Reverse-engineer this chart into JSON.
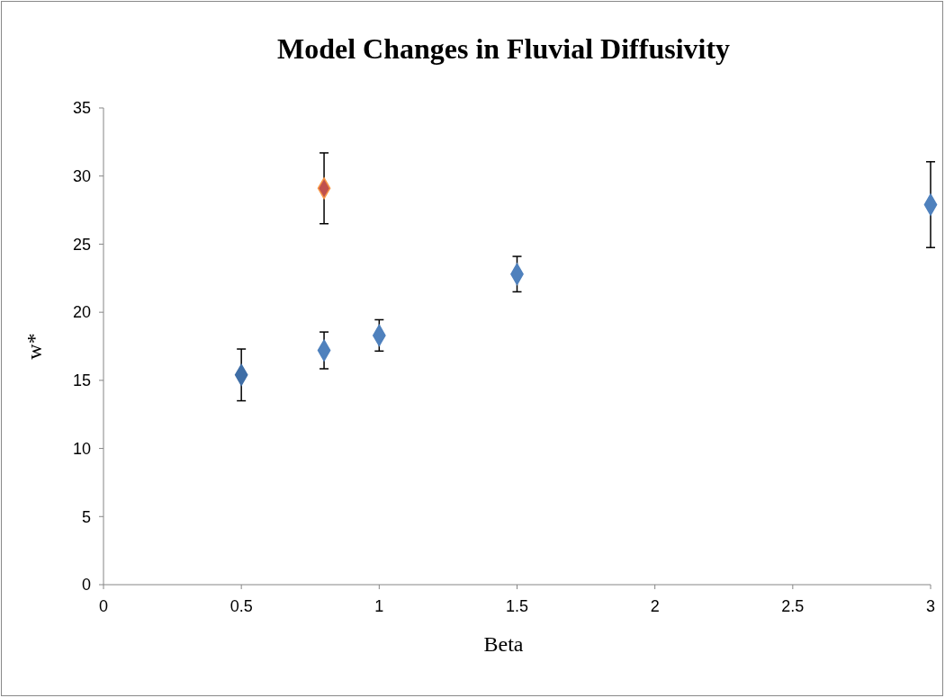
{
  "chart_data": {
    "type": "scatter",
    "title": "Model Changes in Fluvial Diffusivity",
    "xlabel": "Beta",
    "ylabel": "w*",
    "xlim": [
      0,
      3
    ],
    "xticks": [
      0,
      0.5,
      1,
      1.5,
      2,
      2.5,
      3
    ],
    "ylim": [
      0,
      35
    ],
    "yticks": [
      0,
      5,
      10,
      15,
      20,
      25,
      30,
      35
    ],
    "grid": false,
    "marker": "diamond",
    "series": [
      {
        "color": "#3f6ea6",
        "x": [
          0.5
        ],
        "values": [
          15.4
        ],
        "errors": [
          1.9
        ]
      },
      {
        "color": "#4f81bd",
        "x": [
          0.8,
          1,
          1.5,
          3
        ],
        "values": [
          17.2,
          18.3,
          22.8,
          27.9
        ],
        "errors": [
          1.35,
          1.15,
          1.3,
          3.15
        ]
      },
      {
        "color": "#c0504d",
        "x": [
          0.8
        ],
        "values": [
          29.1
        ],
        "errors": [
          2.6
        ]
      }
    ]
  }
}
